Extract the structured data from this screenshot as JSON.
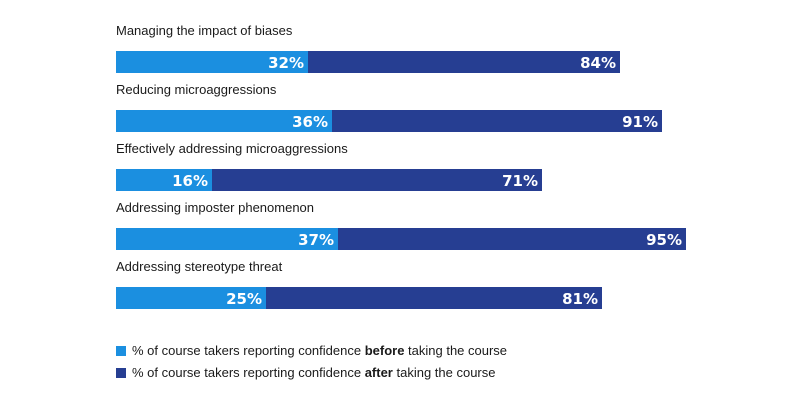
{
  "chart_data": {
    "type": "bar",
    "orientation": "horizontal",
    "stacked_overlay": true,
    "categories": [
      "Managing the impact of biases",
      "Reducing microaggressions",
      "Effectively addressing microaggressions",
      "Addressing imposter phenomenon",
      "Addressing stereotype threat"
    ],
    "series": [
      {
        "name": "before",
        "color": "#1b8fe0",
        "values": [
          32,
          36,
          16,
          37,
          25
        ],
        "labels": [
          "32%",
          "36%",
          "16%",
          "37%",
          "25%"
        ]
      },
      {
        "name": "after",
        "color": "#263e92",
        "values": [
          84,
          91,
          71,
          95,
          81
        ],
        "labels": [
          "84%",
          "91%",
          "71%",
          "95%",
          "81%"
        ]
      }
    ],
    "xlim": [
      0,
      100
    ],
    "grid": false,
    "legend_position": "bottom-left"
  },
  "legend": {
    "before": {
      "prefix": "% of course takers reporting confidence ",
      "bold": "before",
      "suffix": " taking the course"
    },
    "after": {
      "prefix": "% of course takers reporting confidence ",
      "bold": "after",
      "suffix": " taking the course"
    }
  }
}
